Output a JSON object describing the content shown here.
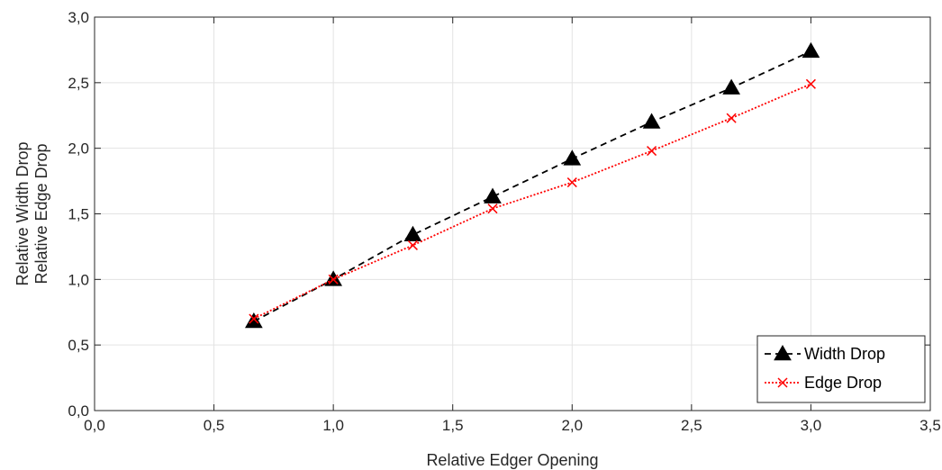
{
  "chart_data": {
    "type": "line",
    "xlabel": "Relative Edger Opening",
    "ylabel_lines": [
      "Relative Width Drop",
      "Relative Edge Drop"
    ],
    "xlim": [
      0,
      3.5
    ],
    "ylim": [
      0,
      3.0
    ],
    "xticks": [
      0,
      0.5,
      1.0,
      1.5,
      2.0,
      2.5,
      3.0,
      3.5
    ],
    "yticks": [
      0,
      0.5,
      1.0,
      1.5,
      2.0,
      2.5,
      3.0
    ],
    "xtick_labels": [
      "0,0",
      "0,5",
      "1,0",
      "1,5",
      "2,0",
      "2,5",
      "3,0",
      "3,5"
    ],
    "ytick_labels": [
      "0,0",
      "0,5",
      "1,0",
      "1,5",
      "2,0",
      "2,5",
      "3,0"
    ],
    "grid": true,
    "legend_position": "bottom-right",
    "series": [
      {
        "name": "Width Drop",
        "color": "#000000",
        "line_style": "dashed",
        "marker": "triangle",
        "x": [
          0.667,
          1.0,
          1.333,
          1.667,
          2.0,
          2.333,
          2.667,
          3.0
        ],
        "y": [
          0.68,
          1.0,
          1.34,
          1.63,
          1.92,
          2.2,
          2.46,
          2.74
        ]
      },
      {
        "name": "Edge Drop",
        "color": "#ff0000",
        "line_style": "dotted",
        "marker": "x",
        "x": [
          0.667,
          1.0,
          1.333,
          1.667,
          2.0,
          2.333,
          2.667,
          3.0
        ],
        "y": [
          0.7,
          1.0,
          1.26,
          1.54,
          1.74,
          1.98,
          2.23,
          2.49
        ]
      }
    ]
  }
}
